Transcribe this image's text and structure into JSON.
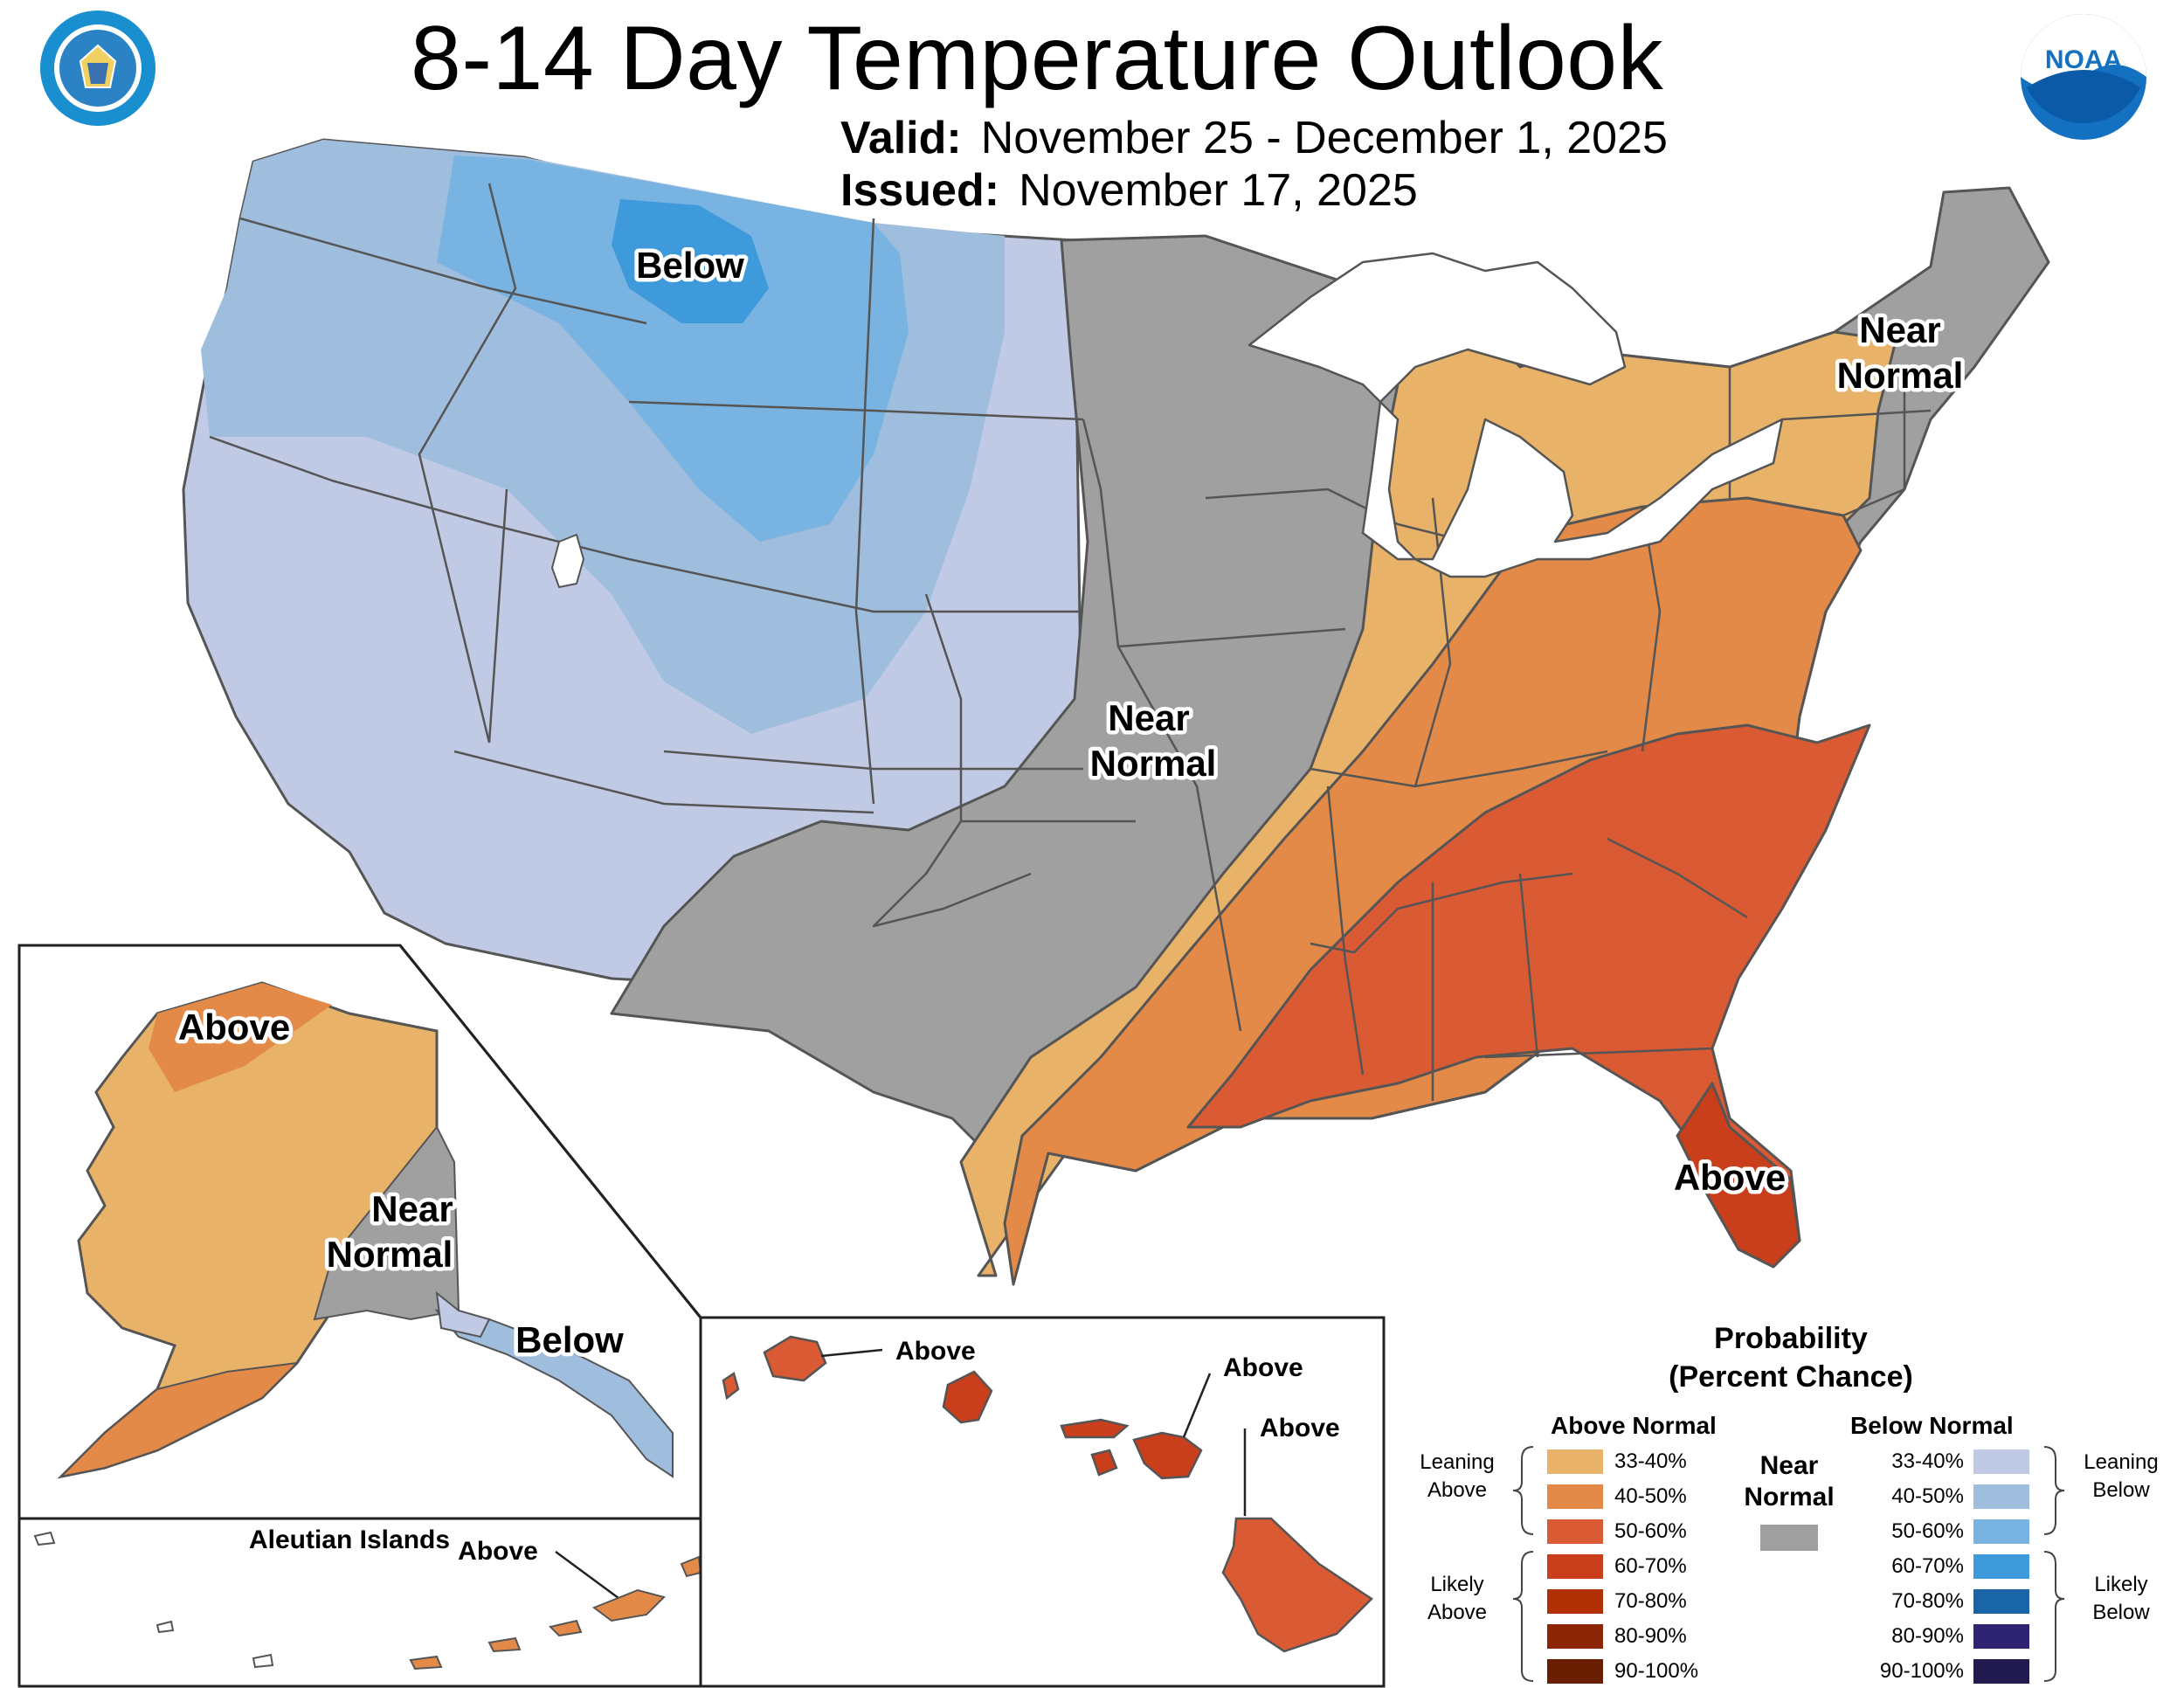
{
  "title": "8-14 Day Temperature Outlook",
  "valid": {
    "label": "Valid:",
    "value": "November 25 - December 1, 2025"
  },
  "issued": {
    "label": "Issued:",
    "value": "November 17, 2025"
  },
  "logos": {
    "left": "DEPARTMENT OF COMMERCE / UNITED STATES OF AMERICA seal",
    "right": "NOAA"
  },
  "colors": {
    "above": [
      "#e8b268",
      "#e48a49",
      "#d95a33",
      "#c93f1c",
      "#b23006",
      "#8c2607",
      "#6a1f03"
    ],
    "below": [
      "#c0cae5",
      "#9fbede",
      "#78b3e1",
      "#3e9adb",
      "#1a65a8",
      "#2e2471",
      "#211a4f"
    ],
    "near": "#a0a0a0"
  },
  "map_labels": {
    "conus_below": "Below",
    "conus_near_central_1": "Near",
    "conus_near_central_2": "Normal",
    "conus_near_ne_1": "Near",
    "conus_near_ne_2": "Normal",
    "conus_above": "Above",
    "ak_above": "Above",
    "ak_near_1": "Near",
    "ak_near_2": "Normal",
    "ak_below": "Below",
    "aleutian_title": "Aleutian Islands",
    "aleutian_above": "Above",
    "hi_above_1": "Above",
    "hi_above_2": "Above",
    "hi_above_3": "Above"
  },
  "legend": {
    "title_1": "Probability",
    "title_2": "(Percent Chance)",
    "above_header": "Above Normal",
    "below_header": "Below Normal",
    "near_1": "Near",
    "near_2": "Normal",
    "above_ranges": [
      "33-40%",
      "40-50%",
      "50-60%",
      "60-70%",
      "70-80%",
      "80-90%",
      "90-100%"
    ],
    "below_ranges": [
      "33-40%",
      "40-50%",
      "50-60%",
      "60-70%",
      "70-80%",
      "80-90%",
      "90-100%"
    ],
    "leaning_above_1": "Leaning",
    "leaning_above_2": "Above",
    "likely_above_1": "Likely",
    "likely_above_2": "Above",
    "leaning_below_1": "Leaning",
    "leaning_below_2": "Below",
    "likely_below_1": "Likely",
    "likely_below_2": "Below"
  }
}
